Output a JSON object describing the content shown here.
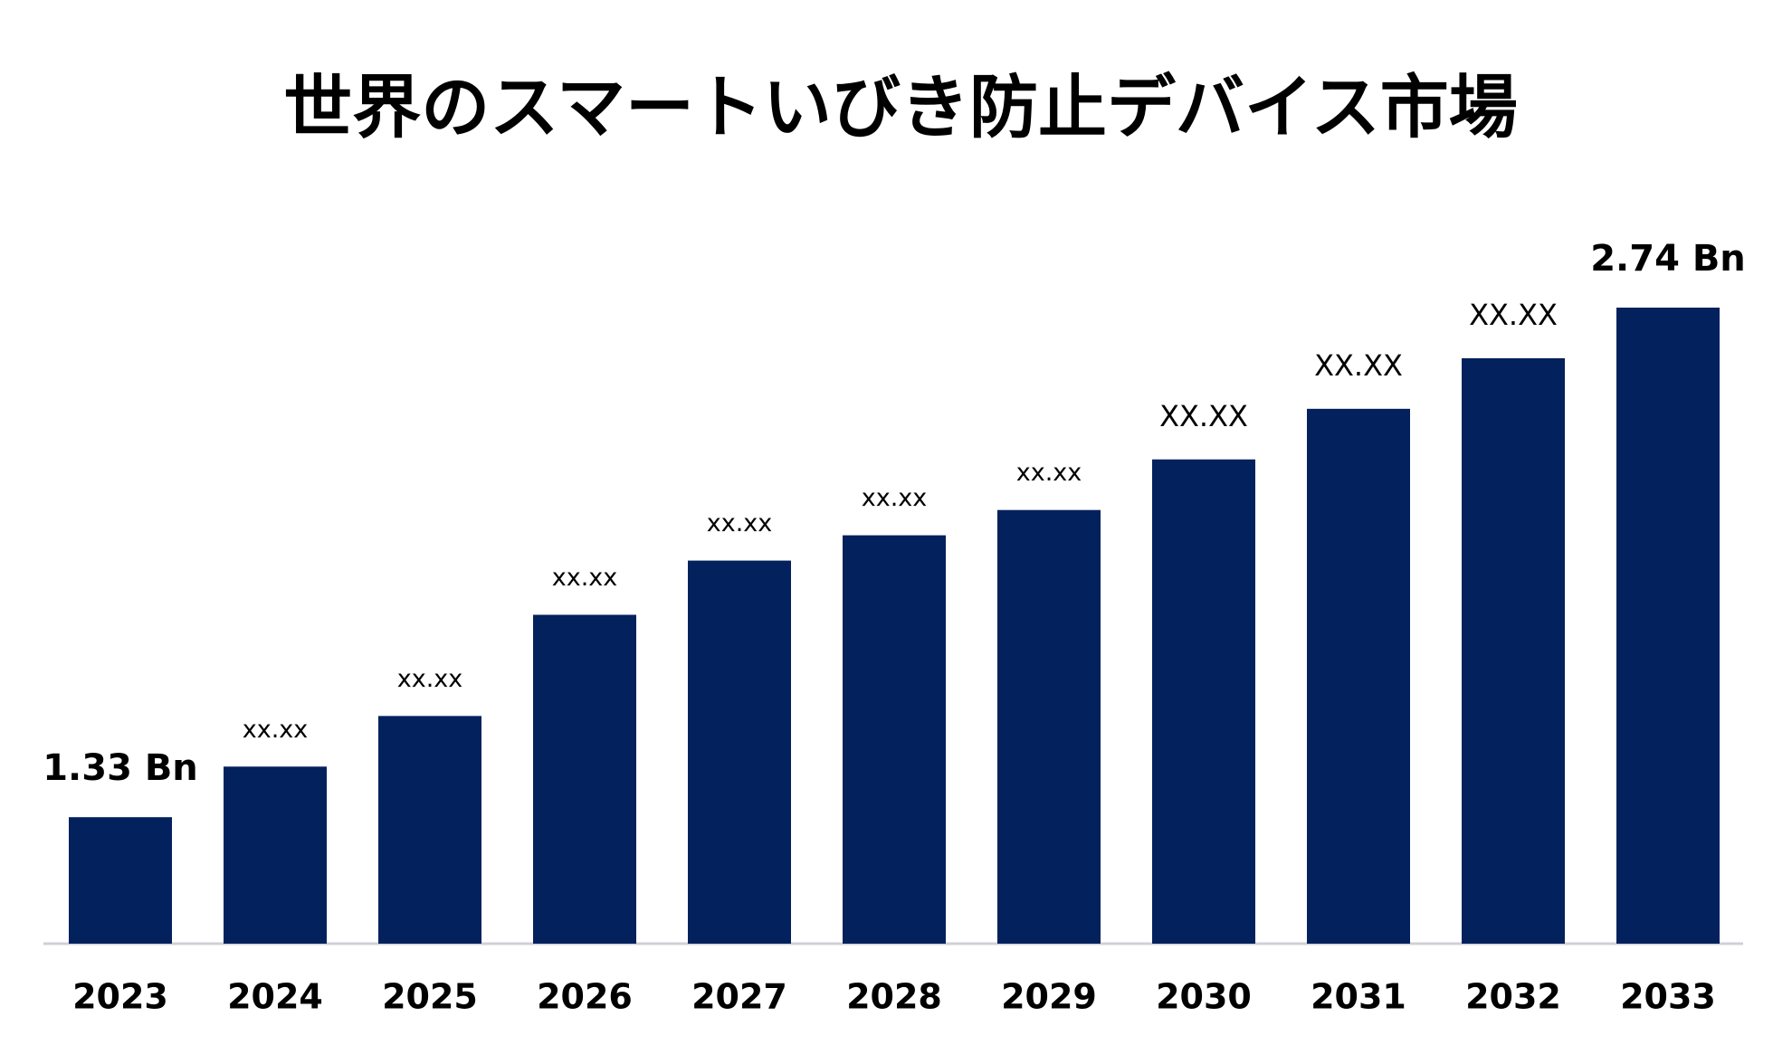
{
  "chart_data": {
    "type": "bar",
    "title": "世界のスマートいびき防止デバイス市場",
    "categories": [
      "2023",
      "2024",
      "2025",
      "2026",
      "2027",
      "2028",
      "2029",
      "2030",
      "2031",
      "2032",
      "2033"
    ],
    "values": [
      1.33,
      1.47,
      1.61,
      1.89,
      2.04,
      2.11,
      2.18,
      2.32,
      2.46,
      2.6,
      2.74
    ],
    "value_labels": [
      "1.33 Bn",
      "xx.xx",
      "xx.xx",
      "xx.xx",
      "xx.xx",
      "xx.xx",
      "xx.xx",
      "XX.XX",
      "XX.XX",
      "XX.XX",
      "2.74 Bn"
    ],
    "color": "#03215d",
    "ylim": [
      0.98,
      2.74
    ]
  }
}
